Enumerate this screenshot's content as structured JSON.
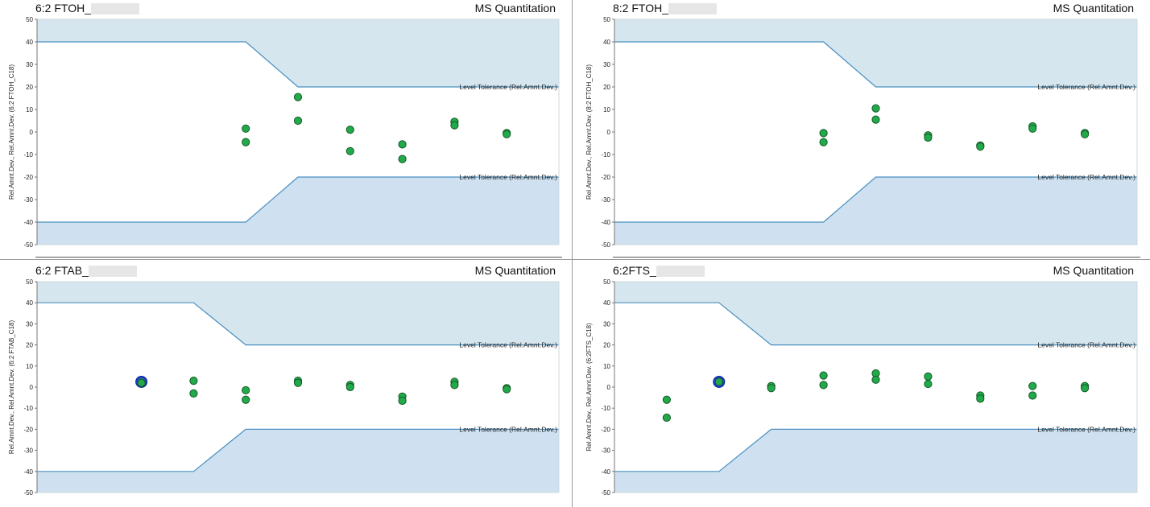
{
  "panels": [
    {
      "title": "6:2 FTOH_",
      "app_label": "MS Quantitation",
      "ylabel": "Rel.Amnt.Dev., Rel.Amnt.Dev. (6:2 FTOH_C18)",
      "tolerance_label": "Level Tolerance (Rel.Amnt.Dev.)"
    },
    {
      "title": "8:2 FTOH_",
      "app_label": "MS Quantitation",
      "ylabel": "Rel.Amnt.Dev., Rel.Amnt.Dev. (8:2 FTOH_C18)",
      "tolerance_label": "Level Tolerance (Rel.Amnt.Dev.)"
    },
    {
      "title": "6:2 FTAB_",
      "app_label": "MS Quantitation",
      "ylabel": "Rel.Amnt.Dev., Rel.Amnt.Dev. (6:2 FTAB_C18)",
      "tolerance_label": "Level Tolerance (Rel.Amnt.Dev.)"
    },
    {
      "title": "6:2FTS_",
      "app_label": "MS Quantitation",
      "ylabel": "Rel.Amnt.Dev., Rel.Amnt.Dev. (6:2FTS_C18)",
      "tolerance_label": "Level Tolerance (Rel.Amnt.Dev.)"
    }
  ],
  "colors": {
    "tolerance_fill_top": "#d6e6ee",
    "tolerance_fill_bottom": "#cfe1f0",
    "tolerance_line": "#4a90c0",
    "point_fill": "#22a94a",
    "point_stroke": "#145a28",
    "highlight_ring": "#1d3fd1"
  },
  "chart_data": [
    {
      "type": "scatter",
      "title": "6:2 FTOH_",
      "ylabel": "Rel.Amnt.Dev., Rel.Amnt.Dev. (6:2 FTOH_C18)",
      "ylim": [
        -50,
        50
      ],
      "yticks": [
        50,
        40,
        30,
        20,
        10,
        0,
        -10,
        -20,
        -30,
        -40,
        -50
      ],
      "xlim": [
        0,
        10
      ],
      "tolerance_upper": [
        [
          0,
          40
        ],
        [
          4,
          40
        ],
        [
          5,
          20
        ],
        [
          10,
          20
        ]
      ],
      "tolerance_lower": [
        [
          0,
          -40
        ],
        [
          4,
          -40
        ],
        [
          5,
          -20
        ],
        [
          10,
          -20
        ]
      ],
      "series": [
        {
          "x": [
            4,
            4,
            5,
            5,
            6,
            6,
            7,
            7,
            8,
            8,
            9,
            9
          ],
          "y": [
            1.5,
            -4.5,
            15.5,
            5,
            1,
            -8.5,
            -5.5,
            -12,
            4.5,
            3,
            -0.5,
            -1
          ]
        }
      ],
      "highlighted": []
    },
    {
      "type": "scatter",
      "title": "8:2 FTOH_",
      "ylabel": "Rel.Amnt.Dev., Rel.Amnt.Dev. (8:2 FTOH_C18)",
      "ylim": [
        -50,
        50
      ],
      "yticks": [
        50,
        40,
        30,
        20,
        10,
        0,
        -10,
        -20,
        -30,
        -40,
        -50
      ],
      "xlim": [
        0,
        10
      ],
      "tolerance_upper": [
        [
          0,
          40
        ],
        [
          4,
          40
        ],
        [
          5,
          20
        ],
        [
          10,
          20
        ]
      ],
      "tolerance_lower": [
        [
          0,
          -40
        ],
        [
          4,
          -40
        ],
        [
          5,
          -20
        ],
        [
          10,
          -20
        ]
      ],
      "series": [
        {
          "x": [
            4,
            4,
            5,
            5,
            6,
            6,
            7,
            7,
            8,
            8,
            9,
            9
          ],
          "y": [
            -0.5,
            -4.5,
            10.5,
            5.5,
            -1.5,
            -2.5,
            -6,
            -6.5,
            2.5,
            1.5,
            -0.5,
            -1
          ]
        }
      ],
      "highlighted": []
    },
    {
      "type": "scatter",
      "title": "6:2 FTAB_",
      "ylabel": "Rel.Amnt.Dev., Rel.Amnt.Dev. (6:2 FTAB_C18)",
      "ylim": [
        -50,
        50
      ],
      "yticks": [
        50,
        40,
        30,
        20,
        10,
        0,
        -10,
        -20,
        -30,
        -40,
        -50
      ],
      "xlim": [
        0,
        10
      ],
      "tolerance_upper": [
        [
          0,
          40
        ],
        [
          3,
          40
        ],
        [
          4,
          20
        ],
        [
          10,
          20
        ]
      ],
      "tolerance_lower": [
        [
          0,
          -40
        ],
        [
          3,
          -40
        ],
        [
          4,
          -20
        ],
        [
          10,
          -20
        ]
      ],
      "series": [
        {
          "x": [
            2,
            3,
            3,
            4,
            4,
            5,
            5,
            6,
            6,
            7,
            7,
            8,
            8,
            9,
            9
          ],
          "y": [
            2,
            3,
            -3,
            -1.5,
            -6,
            3,
            2,
            1,
            0,
            -4.5,
            -6.5,
            2.5,
            1,
            -0.5,
            -1
          ]
        }
      ],
      "highlighted": [
        {
          "x": 2,
          "y": 2.5
        }
      ]
    },
    {
      "type": "scatter",
      "title": "6:2FTS_",
      "ylabel": "Rel.Amnt.Dev., Rel.Amnt.Dev. (6:2FTS_C18)",
      "ylim": [
        -50,
        50
      ],
      "yticks": [
        50,
        40,
        30,
        20,
        10,
        0,
        -10,
        -20,
        -30,
        -40,
        -50
      ],
      "xlim": [
        0,
        10
      ],
      "tolerance_upper": [
        [
          0,
          40
        ],
        [
          2,
          40
        ],
        [
          3,
          20
        ],
        [
          10,
          20
        ]
      ],
      "tolerance_lower": [
        [
          0,
          -40
        ],
        [
          2,
          -40
        ],
        [
          3,
          -20
        ],
        [
          10,
          -20
        ]
      ],
      "series": [
        {
          "x": [
            1,
            1,
            2,
            3,
            3,
            4,
            4,
            5,
            5,
            6,
            6,
            7,
            7,
            8,
            8,
            9,
            9
          ],
          "y": [
            -6,
            -14.5,
            2.5,
            0.5,
            -0.5,
            5.5,
            1,
            6.5,
            3.5,
            5,
            1.5,
            -4,
            -5.5,
            0.5,
            -4,
            0.5,
            -0.5
          ]
        }
      ],
      "highlighted": [
        {
          "x": 2,
          "y": 2.5
        }
      ]
    }
  ]
}
